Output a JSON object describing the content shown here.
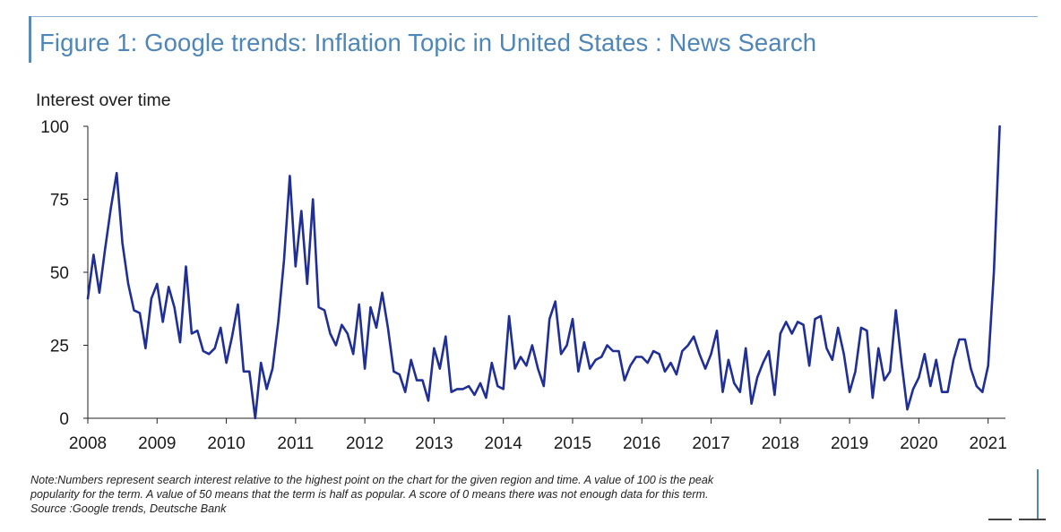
{
  "figure": {
    "title": "Figure 1: Google trends: Inflation Topic in United States : News Search"
  },
  "colors": {
    "title": "#4f86b8",
    "line": "#1f2f96",
    "axis": "#222222"
  },
  "chart_data": {
    "type": "line",
    "title": "Figure 1: Google trends: Inflation Topic in United States : News Search",
    "ylabel": "Interest over time",
    "xlabel": "",
    "ylim": [
      0,
      100
    ],
    "xlim": [
      2008.0,
      2021.25
    ],
    "yticks": [
      0,
      25,
      50,
      75,
      100
    ],
    "xticks": [
      2008,
      2009,
      2010,
      2011,
      2012,
      2013,
      2014,
      2015,
      2016,
      2017,
      2018,
      2019,
      2020,
      2021
    ],
    "grid": false,
    "series": [
      {
        "name": "Inflation (News Search)",
        "x": [
          2008.0,
          2008.083,
          2008.167,
          2008.25,
          2008.333,
          2008.417,
          2008.5,
          2008.583,
          2008.667,
          2008.75,
          2008.833,
          2008.917,
          2009.0,
          2009.083,
          2009.167,
          2009.25,
          2009.333,
          2009.417,
          2009.5,
          2009.583,
          2009.667,
          2009.75,
          2009.833,
          2009.917,
          2010.0,
          2010.083,
          2010.167,
          2010.25,
          2010.333,
          2010.417,
          2010.5,
          2010.583,
          2010.667,
          2010.75,
          2010.833,
          2010.917,
          2011.0,
          2011.083,
          2011.167,
          2011.25,
          2011.333,
          2011.417,
          2011.5,
          2011.583,
          2011.667,
          2011.75,
          2011.833,
          2011.917,
          2012.0,
          2012.083,
          2012.167,
          2012.25,
          2012.333,
          2012.417,
          2012.5,
          2012.583,
          2012.667,
          2012.75,
          2012.833,
          2012.917,
          2013.0,
          2013.083,
          2013.167,
          2013.25,
          2013.333,
          2013.417,
          2013.5,
          2013.583,
          2013.667,
          2013.75,
          2013.833,
          2013.917,
          2014.0,
          2014.083,
          2014.167,
          2014.25,
          2014.333,
          2014.417,
          2014.5,
          2014.583,
          2014.667,
          2014.75,
          2014.833,
          2014.917,
          2015.0,
          2015.083,
          2015.167,
          2015.25,
          2015.333,
          2015.417,
          2015.5,
          2015.583,
          2015.667,
          2015.75,
          2015.833,
          2015.917,
          2016.0,
          2016.083,
          2016.167,
          2016.25,
          2016.333,
          2016.417,
          2016.5,
          2016.583,
          2016.667,
          2016.75,
          2016.833,
          2016.917,
          2017.0,
          2017.083,
          2017.167,
          2017.25,
          2017.333,
          2017.417,
          2017.5,
          2017.583,
          2017.667,
          2017.75,
          2017.833,
          2017.917,
          2018.0,
          2018.083,
          2018.167,
          2018.25,
          2018.333,
          2018.417,
          2018.5,
          2018.583,
          2018.667,
          2018.75,
          2018.833,
          2018.917,
          2019.0,
          2019.083,
          2019.167,
          2019.25,
          2019.333,
          2019.417,
          2019.5,
          2019.583,
          2019.667,
          2019.75,
          2019.833,
          2019.917,
          2020.0,
          2020.083,
          2020.167,
          2020.25,
          2020.333,
          2020.417,
          2020.5,
          2020.583,
          2020.667,
          2020.75,
          2020.833,
          2020.917,
          2021.0,
          2021.083,
          2021.167
        ],
        "values": [
          41,
          56,
          43,
          58,
          72,
          84,
          60,
          46,
          37,
          36,
          24,
          41,
          46,
          33,
          45,
          38,
          26,
          52,
          29,
          30,
          23,
          22,
          24,
          31,
          19,
          28,
          39,
          16,
          16,
          0,
          19,
          10,
          17,
          33,
          54,
          83,
          52,
          71,
          46,
          75,
          38,
          37,
          29,
          25,
          32,
          29,
          22,
          39,
          17,
          38,
          31,
          43,
          31,
          16,
          15,
          9,
          20,
          13,
          13,
          6,
          24,
          17,
          28,
          9,
          10,
          10,
          11,
          8,
          12,
          7,
          19,
          11,
          10,
          35,
          17,
          21,
          18,
          25,
          17,
          11,
          34,
          40,
          22,
          25,
          34,
          16,
          26,
          17,
          20,
          21,
          25,
          23,
          23,
          13,
          18,
          21,
          21,
          19,
          23,
          22,
          16,
          19,
          15,
          23,
          25,
          28,
          22,
          17,
          22,
          30,
          9,
          20,
          12,
          9,
          24,
          5,
          14,
          19,
          23,
          8,
          29,
          33,
          29,
          33,
          32,
          18,
          34,
          35,
          24,
          20,
          31,
          22,
          9,
          16,
          31,
          30,
          7,
          24,
          13,
          16,
          37,
          19,
          3,
          10,
          14,
          22,
          11,
          20,
          9,
          9,
          20,
          27,
          27,
          17,
          11,
          9,
          18,
          50,
          100
        ]
      }
    ],
    "notes": [
      "Note:Numbers represent search interest relative to the highest point on the chart for the given region and time. A value of 100 is the peak",
      "popularity for the term. A value of 50 means that the term is half as popular. A score of 0 means there was not enough data for this term.",
      "Source :Google trends, Deutsche Bank"
    ]
  }
}
